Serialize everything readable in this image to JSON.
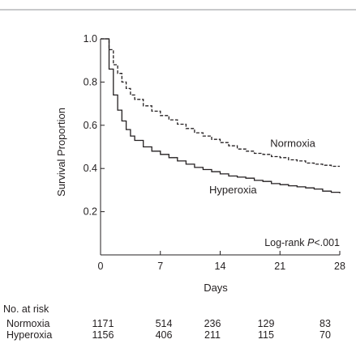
{
  "chart_data": {
    "type": "line",
    "xlabel": "Days",
    "ylabel": "Survival Proportion",
    "xlim": [
      0,
      28
    ],
    "ylim": [
      0,
      1.0
    ],
    "xticks": [
      0,
      7,
      14,
      21,
      28
    ],
    "yticks": [
      0.2,
      0.4,
      0.6,
      0.8,
      1.0
    ],
    "x_tick_labels": [
      "0",
      "7",
      "14",
      "21",
      "28"
    ],
    "y_tick_labels": [
      "0.2",
      "0.4",
      "0.6",
      "0.8",
      "1.0"
    ],
    "step": true,
    "grid": false,
    "annotation": {
      "prefix": "Log-rank ",
      "italic": "P",
      "suffix": "<.001"
    },
    "series": [
      {
        "name": "Normoxia",
        "style": "dashed",
        "color": "#231f20",
        "x": [
          0,
          1,
          1.5,
          2,
          2.5,
          3,
          3.5,
          4,
          5,
          6,
          7,
          8,
          9,
          10,
          11,
          12,
          13,
          14,
          15,
          16,
          17,
          18,
          19,
          20,
          21,
          22,
          23,
          24,
          25,
          26,
          27,
          28
        ],
        "y": [
          1.0,
          0.95,
          0.88,
          0.84,
          0.8,
          0.77,
          0.74,
          0.72,
          0.69,
          0.665,
          0.645,
          0.625,
          0.605,
          0.585,
          0.565,
          0.55,
          0.535,
          0.52,
          0.505,
          0.49,
          0.48,
          0.47,
          0.465,
          0.455,
          0.45,
          0.44,
          0.435,
          0.425,
          0.42,
          0.415,
          0.41,
          0.41
        ]
      },
      {
        "name": "Hyperoxia",
        "style": "solid",
        "color": "#231f20",
        "x": [
          0,
          1,
          1.5,
          2,
          2.5,
          3,
          3.5,
          4,
          5,
          6,
          7,
          8,
          9,
          10,
          11,
          12,
          13,
          14,
          15,
          16,
          17,
          18,
          19,
          20,
          21,
          22,
          23,
          24,
          25,
          26,
          27,
          28
        ],
        "y": [
          1.0,
          0.86,
          0.74,
          0.67,
          0.62,
          0.58,
          0.55,
          0.53,
          0.5,
          0.48,
          0.465,
          0.45,
          0.435,
          0.42,
          0.405,
          0.395,
          0.385,
          0.375,
          0.365,
          0.36,
          0.355,
          0.345,
          0.34,
          0.33,
          0.325,
          0.32,
          0.315,
          0.31,
          0.305,
          0.295,
          0.29,
          0.285
        ]
      }
    ],
    "risk_table": {
      "title": "No. at risk",
      "rows": [
        {
          "label": "Normoxia",
          "values": [
            "1171",
            "514",
            "236",
            "129",
            "83"
          ]
        },
        {
          "label": "Hyperoxia",
          "values": [
            "1156",
            "406",
            "211",
            "115",
            "70"
          ]
        }
      ]
    }
  }
}
